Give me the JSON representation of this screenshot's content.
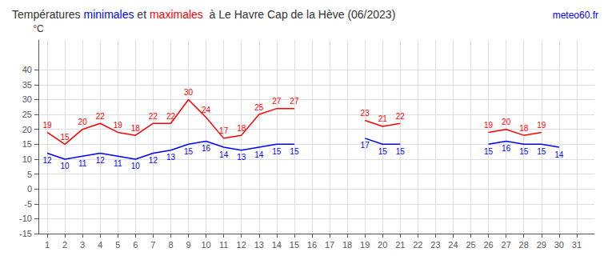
{
  "chart_data": {
    "type": "line",
    "title": "Températures minimales et maximales  à Le Havre Cap de la Hève (06/2023)",
    "title_colors": [
      {
        "text": "minimales",
        "color": "#0000ff"
      },
      {
        "text": "maximales",
        "color": "#ff0000"
      }
    ],
    "annotations": [
      {
        "text": "meteo60.fr",
        "color": "blue"
      }
    ],
    "ylabel": "°C",
    "x": [
      1,
      2,
      3,
      4,
      5,
      6,
      7,
      8,
      9,
      10,
      11,
      12,
      13,
      14,
      15,
      16,
      17,
      18,
      19,
      20,
      21,
      22,
      23,
      24,
      25,
      26,
      27,
      28,
      29,
      30,
      31
    ],
    "series": [
      {
        "color": "#0000ff",
        "values": [
          12,
          10,
          11,
          12,
          11,
          10,
          12,
          13,
          15,
          16,
          14,
          13,
          14,
          15,
          15,
          null,
          null,
          null,
          17,
          15,
          15,
          null,
          null,
          null,
          null,
          15,
          16,
          15,
          15,
          14,
          null
        ]
      },
      {
        "color": "#ff0000",
        "values": [
          19,
          15,
          20,
          22,
          19,
          18,
          22,
          22,
          30,
          24,
          17,
          18,
          25,
          27,
          27,
          null,
          null,
          null,
          23,
          21,
          22,
          null,
          null,
          null,
          null,
          19,
          20,
          18,
          19,
          null,
          null
        ]
      }
    ],
    "xlim": [
      0.5,
      32
    ],
    "xticks": [
      1,
      2,
      3,
      4,
      5,
      6,
      7,
      8,
      9,
      10,
      11,
      12,
      13,
      14,
      15,
      16,
      17,
      18,
      19,
      20,
      21,
      22,
      23,
      24,
      25,
      26,
      27,
      28,
      29,
      30,
      31
    ],
    "ylim": [
      -15,
      50
    ],
    "yticks": [
      -15,
      -10,
      -5,
      0,
      5,
      10,
      15,
      20,
      25,
      30,
      35,
      40
    ],
    "grid": true,
    "data_labels": true
  }
}
